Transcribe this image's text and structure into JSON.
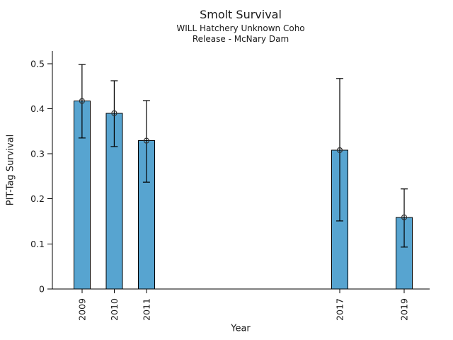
{
  "chart_data": {
    "type": "bar",
    "title": "Smolt Survival",
    "subtitle": [
      "WILL Hatchery Unknown Coho",
      "Release - McNary Dam"
    ],
    "xlabel": "Year",
    "ylabel": "PIT-Tag Survival",
    "categories": [
      "2009",
      "2010",
      "2011",
      "2017",
      "2019"
    ],
    "x_values": [
      2009,
      2010,
      2011,
      2017,
      2019
    ],
    "values": [
      0.417,
      0.39,
      0.329,
      0.308,
      0.159
    ],
    "error_low": [
      0.335,
      0.316,
      0.237,
      0.151,
      0.093
    ],
    "error_high": [
      0.498,
      0.462,
      0.418,
      0.467,
      0.222
    ],
    "yticks": {
      "values": [
        0,
        0.1,
        0.2,
        0.3,
        0.4,
        0.5
      ],
      "labels": [
        "0",
        "0.1",
        "0.2",
        "0.3",
        "0.4",
        "0.5"
      ]
    },
    "ylim": [
      0,
      0.528
    ],
    "xlim": [
      2008.08,
      2019.79
    ],
    "grid": false,
    "legend": null,
    "marker": "open-circle",
    "colors": {
      "bar_fill": "#57a4d0",
      "bar_edge": "#000000",
      "error_bar": "#000000",
      "marker_edge": "#333333",
      "axis": "#000000",
      "text": "#1a1a1a"
    }
  }
}
